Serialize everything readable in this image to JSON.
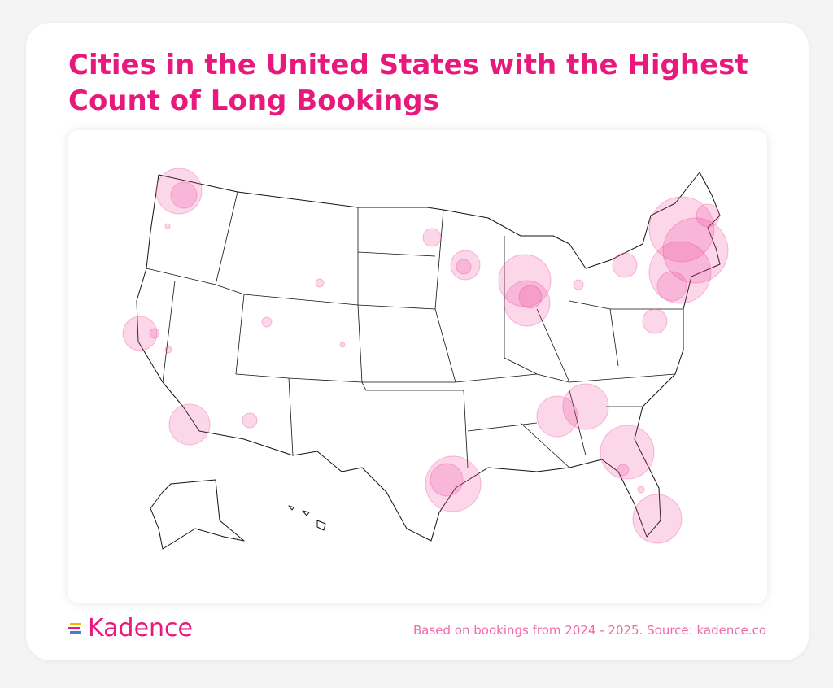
{
  "header": {
    "title": "Cities in the United States with the Highest Count of Long Bookings"
  },
  "footer": {
    "logo": "Kadence",
    "source": "Based on bookings from 2024 - 2025. Source: kadence.co"
  }
}
